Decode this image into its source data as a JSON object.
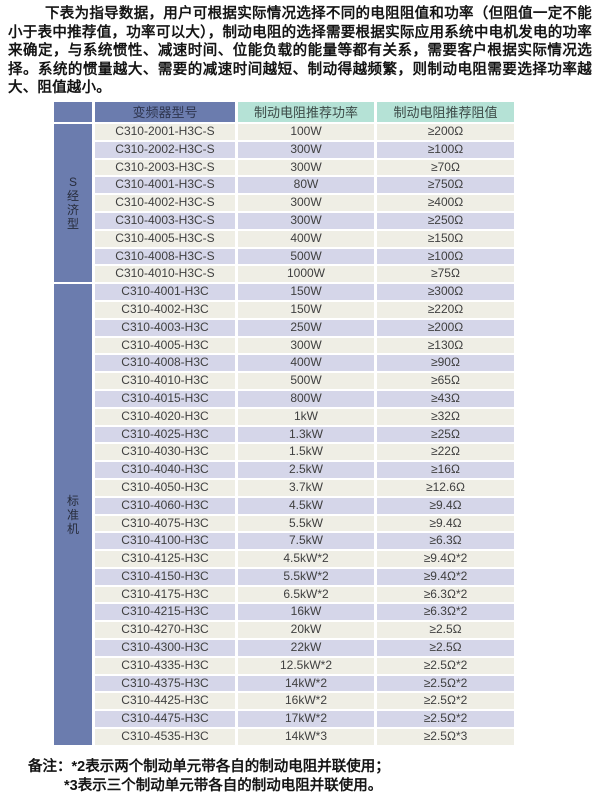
{
  "intro_paragraph": "下表为指导数据，用户可根据实际情况选择不同的电阻阻值和功率（但阻值一定不能小于表中推荐值，功率可以大），制动电阻的选择需要根据实际应用系统中电机发电的功率来确定，与系统惯性、减速时间、位能负载的能量等都有关系，需要客户根据实际情况选择。系统的惯量越大、需要的减速时间越短、制动得越频繁，则制动电阻需要选择功率越大、阻值越小。",
  "table": {
    "headers": {
      "model": "变频器型号",
      "power": "制动电阻推荐功率",
      "resistance": "制动电阻推荐阻值"
    },
    "colors": {
      "header_blue": "#6b7cae",
      "header_teal": "#b5e2d6",
      "row_beige": "#efeee5",
      "row_lavender": "#d5d6e9"
    },
    "groups": [
      {
        "label": "S经济型",
        "rows": [
          {
            "model": "C310-2001-H3C-S",
            "power": "100W",
            "resistance": "≥200Ω"
          },
          {
            "model": "C310-2002-H3C-S",
            "power": "300W",
            "resistance": "≥100Ω"
          },
          {
            "model": "C310-2003-H3C-S",
            "power": "300W",
            "resistance": "≥70Ω"
          },
          {
            "model": "C310-4001-H3C-S",
            "power": "80W",
            "resistance": "≥750Ω"
          },
          {
            "model": "C310-4002-H3C-S",
            "power": "300W",
            "resistance": "≥400Ω"
          },
          {
            "model": "C310-4003-H3C-S",
            "power": "300W",
            "resistance": "≥250Ω"
          },
          {
            "model": "C310-4005-H3C-S",
            "power": "400W",
            "resistance": "≥150Ω"
          },
          {
            "model": "C310-4008-H3C-S",
            "power": "500W",
            "resistance": "≥100Ω"
          },
          {
            "model": "C310-4010-H3C-S",
            "power": "1000W",
            "resistance": "≥75Ω"
          }
        ]
      },
      {
        "label": "标准机",
        "rows": [
          {
            "model": "C310-4001-H3C",
            "power": "150W",
            "resistance": "≥300Ω"
          },
          {
            "model": "C310-4002-H3C",
            "power": "150W",
            "resistance": "≥220Ω"
          },
          {
            "model": "C310-4003-H3C",
            "power": "250W",
            "resistance": "≥200Ω"
          },
          {
            "model": "C310-4005-H3C",
            "power": "300W",
            "resistance": "≥130Ω"
          },
          {
            "model": "C310-4008-H3C",
            "power": "400W",
            "resistance": "≥90Ω"
          },
          {
            "model": "C310-4010-H3C",
            "power": "500W",
            "resistance": "≥65Ω"
          },
          {
            "model": "C310-4015-H3C",
            "power": "800W",
            "resistance": "≥43Ω"
          },
          {
            "model": "C310-4020-H3C",
            "power": "1kW",
            "resistance": "≥32Ω"
          },
          {
            "model": "C310-4025-H3C",
            "power": "1.3kW",
            "resistance": "≥25Ω"
          },
          {
            "model": "C310-4030-H3C",
            "power": "1.5kW",
            "resistance": "≥22Ω"
          },
          {
            "model": "C310-4040-H3C",
            "power": "2.5kW",
            "resistance": "≥16Ω"
          },
          {
            "model": "C310-4050-H3C",
            "power": "3.7kW",
            "resistance": "≥12.6Ω"
          },
          {
            "model": "C310-4060-H3C",
            "power": "4.5kW",
            "resistance": "≥9.4Ω"
          },
          {
            "model": "C310-4075-H3C",
            "power": "5.5kW",
            "resistance": "≥9.4Ω"
          },
          {
            "model": "C310-4100-H3C",
            "power": "7.5kW",
            "resistance": "≥6.3Ω"
          },
          {
            "model": "C310-4125-H3C",
            "power": "4.5kW*2",
            "resistance": "≥9.4Ω*2"
          },
          {
            "model": "C310-4150-H3C",
            "power": "5.5kW*2",
            "resistance": "≥9.4Ω*2"
          },
          {
            "model": "C310-4175-H3C",
            "power": "6.5kW*2",
            "resistance": "≥6.3Ω*2"
          },
          {
            "model": "C310-4215-H3C",
            "power": "16kW",
            "resistance": "≥6.3Ω*2"
          },
          {
            "model": "C310-4270-H3C",
            "power": "20kW",
            "resistance": "≥2.5Ω"
          },
          {
            "model": "C310-4300-H3C",
            "power": "22kW",
            "resistance": "≥2.5Ω"
          },
          {
            "model": "C310-4335-H3C",
            "power": "12.5kW*2",
            "resistance": "≥2.5Ω*2"
          },
          {
            "model": "C310-4375-H3C",
            "power": "14kW*2",
            "resistance": "≥2.5Ω*2"
          },
          {
            "model": "C310-4425-H3C",
            "power": "16kW*2",
            "resistance": "≥2.5Ω*2"
          },
          {
            "model": "C310-4475-H3C",
            "power": "17kW*2",
            "resistance": "≥2.5Ω*2"
          },
          {
            "model": "C310-4535-H3C",
            "power": "14kW*3",
            "resistance": "≥2.5Ω*3"
          }
        ]
      }
    ]
  },
  "notes": {
    "label": "备注：",
    "lines": [
      "*2表示两个制动单元带各自的制动电阻并联使用；",
      "*3表示三个制动单元带各自的制动电阻并联使用。"
    ]
  }
}
